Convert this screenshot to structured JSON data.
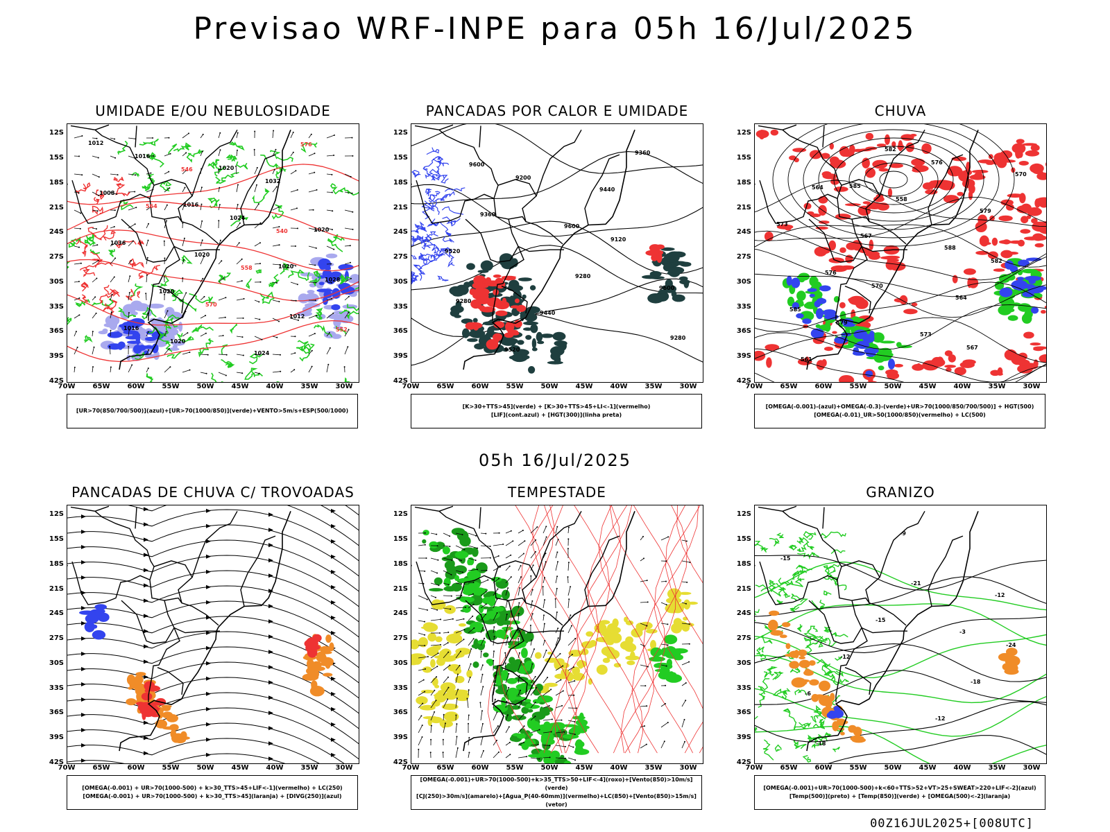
{
  "header": {
    "title": "Previsao WRF-INPE  para 05h 16/Jul/2025",
    "mid_date": "05h 16/Jul/2025",
    "footer": "00Z16JUL2025+[008UTC]"
  },
  "axes": {
    "lat_labels": [
      "12S",
      "15S",
      "18S",
      "21S",
      "24S",
      "27S",
      "30S",
      "33S",
      "36S",
      "39S",
      "42S"
    ],
    "lon_labels": [
      "70W",
      "65W",
      "60W",
      "55W",
      "50W",
      "45W",
      "40W",
      "35W",
      "30W"
    ]
  },
  "colors": {
    "green": "#22cc22",
    "red": "#ee3333",
    "blue": "#3344ee",
    "lavender": "#a9a9ee",
    "dark_teal": "#1f3f3f",
    "yellow": "#e6dd33",
    "orange": "#f08c28",
    "dark_green": "#1a9a1a"
  },
  "panels": [
    {
      "id": "umidade",
      "title": "UMIDADE E/OU NEBULOSIDADE",
      "legend": [
        "[UR>70(850/700/500)](azul)+[UR>70(1000/850)](verde)+VENTO>5m/s+ESP(500/1000)"
      ],
      "labels": [
        "1012",
        "1016",
        "1020",
        "1016",
        "1020",
        "1020",
        "1020",
        "1024",
        "1008",
        "1020",
        "1012",
        "1016",
        "1024",
        "1028",
        "1020",
        "1032",
        "1036",
        "570",
        "576",
        "564",
        "558",
        "552",
        "546",
        "540"
      ]
    },
    {
      "id": "pancadas_calor",
      "title": "PANCADAS POR CALOR E UMIDADE",
      "legend": [
        "[K>30+TTS>45](verde) + [K>30+TTS>45+LI<-1](vermelho)",
        "[LIF](cont.azul) + [HGT(300)](linha preta)"
      ],
      "labels": [
        "9600",
        "9600",
        "9600",
        "9520",
        "9440",
        "9520",
        "9440",
        "9360",
        "9360",
        "9280",
        "9280",
        "9200",
        "9120",
        "9280"
      ]
    },
    {
      "id": "chuva",
      "title": "CHUVA",
      "legend": [
        "[OMEGA(-0.001)-(azul)+OMEGA(-0.3)-(verde)+UR>70(1000/850/700/500)] + HGT(500)",
        "[OMEGA(-0.01)_UR>50(1000/850)(vermelho) + LC(500)"
      ],
      "labels": [
        "585",
        "588",
        "585",
        "582",
        "579",
        "576",
        "573",
        "570",
        "567",
        "564",
        "561",
        "558",
        "582",
        "579",
        "576",
        "573",
        "570",
        "567",
        "564"
      ]
    },
    {
      "id": "trovoadas",
      "title": "PANCADAS DE CHUVA C/ TROVOADAS",
      "legend": [
        "[OMEGA(-0.001) + UR>70(1000-500) + k>30_TTS>45+LIF<-1](vermelho) + LC(250)",
        "[OMEGA(-0.001) + UR>70(1000-500) + k>30_TTS>45](laranja) + [DIVG(250)](azul)"
      ],
      "labels": []
    },
    {
      "id": "tempestade",
      "title": "TEMPESTADE",
      "legend": [
        "[OMEGA(-0.001)+UR>70(1000-500)+k>35_TTS>50+LIF<-4](roxo)+[Vento(850)>10m/s](verde)",
        "[CJ(250)>30m/s](amarelo)+[Agua_P(40-60mm)](vermelho)+LC(850)+[Vento(850)>15m/s](vetor)"
      ],
      "labels": []
    },
    {
      "id": "granizo",
      "title": "GRANIZO",
      "legend": [
        "[OMEGA(-0.001)+UR>70(1000-500)+k<60+TTS>52+VT>25+SWEAT>220+LIF<-2](azul)",
        "[Temp(500)](preto) + [Temp(850)](verde) + [OMEGA(500)<-2](laranja)"
      ],
      "labels": [
        "-3",
        "-6",
        "-9",
        "-12",
        "-12",
        "-12",
        "-15",
        "-15",
        "-18",
        "-18",
        "-21",
        "-24"
      ]
    }
  ]
}
